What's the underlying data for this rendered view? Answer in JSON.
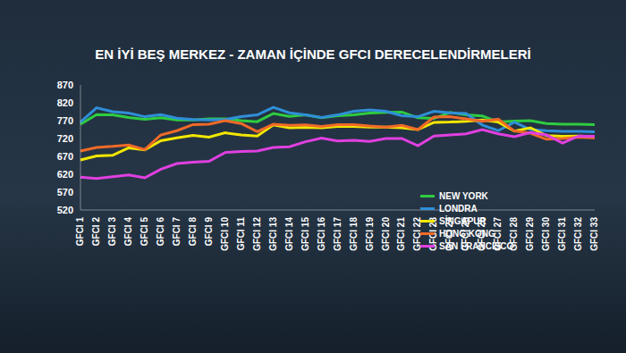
{
  "chart_data": {
    "type": "line",
    "title": "EN İYİ BEŞ MERKEZ - ZAMAN İÇİNDE GFCI DERECELENDİRMELERİ",
    "categories": [
      "GFCI 1",
      "GFCI 2",
      "GFCI 3",
      "GFCI 4",
      "GFCI 5",
      "GFCI 6",
      "GFCI 7",
      "GFCI 8",
      "GFCI 9",
      "GFCI 10",
      "GFCI 11",
      "GFCI 12",
      "GFCI 13",
      "GFCI 14",
      "GFCI 15",
      "GFCI 16",
      "GFCI 17",
      "GFCI 18",
      "GFCI 19",
      "GFCI 20",
      "GFCI 21",
      "GFCI 22",
      "GFCI 23",
      "GFCI 24",
      "GFCI 25",
      "GFCI 26",
      "GFCI 27",
      "GFCI 28",
      "GFCI 29",
      "GFCI 30",
      "GFCI 31",
      "GFCI 32",
      "GFCI 33"
    ],
    "series": [
      {
        "name": "NEW YORK",
        "color": "#2ecc40",
        "values": [
          760,
          787,
          786,
          779,
          774,
          778,
          772,
          772,
          775,
          775,
          770,
          767,
          790,
          782,
          786,
          778,
          784,
          786,
          791,
          793,
          794,
          778,
          776,
          793,
          786,
          783,
          766,
          769,
          770,
          762,
          760,
          760,
          759
        ]
      },
      {
        "name": "LONDRA",
        "color": "#2f8fd8",
        "values": [
          766,
          806,
          795,
          791,
          781,
          787,
          777,
          773,
          772,
          773,
          781,
          786,
          807,
          792,
          786,
          779,
          786,
          796,
          800,
          796,
          784,
          781,
          796,
          792,
          790,
          758,
          742,
          766,
          745,
          742,
          740,
          740,
          739
        ]
      },
      {
        "name": "SİNGAPUR",
        "color": "#f2e600",
        "values": [
          660,
          671,
          673,
          694,
          688,
          714,
          722,
          729,
          724,
          736,
          730,
          727,
          758,
          750,
          751,
          750,
          754,
          754,
          752,
          752,
          750,
          745,
          765,
          766,
          768,
          772,
          766,
          741,
          750,
          728,
          726,
          727,
          725
        ]
      },
      {
        "name": "HONG KONG",
        "color": "#f06a28",
        "values": [
          685,
          695,
          698,
          702,
          689,
          730,
          742,
          759,
          760,
          770,
          762,
          739,
          760,
          757,
          758,
          754,
          759,
          759,
          755,
          752,
          757,
          745,
          780,
          781,
          775,
          768,
          774,
          741,
          735,
          718,
          720,
          724,
          722
        ]
      },
      {
        "name": "SAN FRANCISCO",
        "color": "#e040e0",
        "values": [
          612,
          608,
          613,
          618,
          610,
          634,
          650,
          654,
          656,
          681,
          684,
          685,
          695,
          697,
          711,
          721,
          713,
          715,
          712,
          720,
          720,
          700,
          727,
          730,
          733,
          745,
          733,
          725,
          737,
          730,
          707,
          727,
          726
        ]
      }
    ],
    "ylim": [
      520,
      870
    ],
    "yticks": [
      520,
      570,
      620,
      670,
      720,
      770,
      820,
      870
    ],
    "grid": false,
    "legend": "right"
  }
}
